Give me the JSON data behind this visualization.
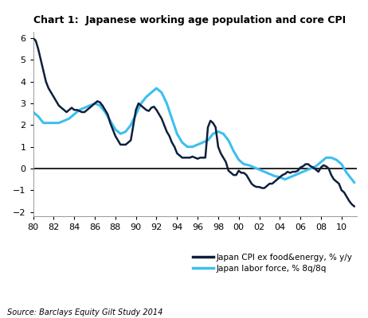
{
  "title": "Chart 1:  Japanese working age population and core CPI",
  "source": "Source: Barclays Equity Gilt Study 2014",
  "xlim": [
    1980,
    2011.5
  ],
  "ylim": [
    -2.2,
    6.3
  ],
  "yticks": [
    -2,
    -1,
    0,
    1,
    2,
    3,
    4,
    5,
    6
  ],
  "xtick_positions": [
    1980,
    1982,
    1984,
    1986,
    1988,
    1990,
    1992,
    1994,
    1996,
    1998,
    2000,
    2002,
    2004,
    2006,
    2008,
    2010
  ],
  "xtick_labels": [
    "80",
    "82",
    "84",
    "86",
    "88",
    "90",
    "92",
    "94",
    "96",
    "98",
    "00",
    "02",
    "04",
    "06",
    "08",
    "10"
  ],
  "cpi_color": "#0d1f3c",
  "labor_color": "#3dbfef",
  "legend_cpi": "Japan CPI ex food&energy, % y/y",
  "legend_labor": "Japan labor force, % 8q/8q",
  "cpi_x": [
    1980.0,
    1980.25,
    1980.5,
    1980.75,
    1981.0,
    1981.25,
    1981.5,
    1981.75,
    1982.0,
    1982.25,
    1982.5,
    1982.75,
    1983.0,
    1983.25,
    1983.5,
    1983.75,
    1984.0,
    1984.25,
    1984.5,
    1984.75,
    1985.0,
    1985.25,
    1985.5,
    1985.75,
    1986.0,
    1986.25,
    1986.5,
    1986.75,
    1987.0,
    1987.25,
    1987.5,
    1987.75,
    1988.0,
    1988.25,
    1988.5,
    1988.75,
    1989.0,
    1989.25,
    1989.5,
    1989.75,
    1990.0,
    1990.25,
    1990.5,
    1990.75,
    1991.0,
    1991.25,
    1991.5,
    1991.75,
    1992.0,
    1992.25,
    1992.5,
    1992.75,
    1993.0,
    1993.25,
    1993.5,
    1993.75,
    1994.0,
    1994.25,
    1994.5,
    1994.75,
    1995.0,
    1995.25,
    1995.5,
    1995.75,
    1996.0,
    1996.25,
    1996.5,
    1996.75,
    1997.0,
    1997.25,
    1997.5,
    1997.75,
    1998.0,
    1998.25,
    1998.5,
    1998.75,
    1999.0,
    1999.25,
    1999.5,
    1999.75,
    2000.0,
    2000.25,
    2000.5,
    2000.75,
    2001.0,
    2001.25,
    2001.5,
    2001.75,
    2002.0,
    2002.25,
    2002.5,
    2002.75,
    2003.0,
    2003.25,
    2003.5,
    2003.75,
    2004.0,
    2004.25,
    2004.5,
    2004.75,
    2005.0,
    2005.25,
    2005.5,
    2005.75,
    2006.0,
    2006.25,
    2006.5,
    2006.75,
    2007.0,
    2007.25,
    2007.5,
    2007.75,
    2008.0,
    2008.25,
    2008.5,
    2008.75,
    2009.0,
    2009.25,
    2009.5,
    2009.75,
    2010.0,
    2010.25,
    2010.5,
    2010.75,
    2011.0,
    2011.25
  ],
  "cpi_y": [
    6.0,
    5.9,
    5.5,
    5.0,
    4.5,
    4.0,
    3.7,
    3.5,
    3.3,
    3.1,
    2.9,
    2.8,
    2.7,
    2.6,
    2.7,
    2.8,
    2.7,
    2.7,
    2.65,
    2.6,
    2.6,
    2.7,
    2.8,
    2.9,
    3.0,
    3.1,
    3.05,
    2.9,
    2.7,
    2.5,
    2.1,
    1.8,
    1.5,
    1.3,
    1.1,
    1.1,
    1.1,
    1.2,
    1.3,
    2.0,
    2.7,
    3.0,
    2.9,
    2.8,
    2.7,
    2.65,
    2.8,
    2.85,
    2.7,
    2.5,
    2.3,
    2.0,
    1.7,
    1.5,
    1.2,
    1.0,
    0.7,
    0.6,
    0.5,
    0.5,
    0.5,
    0.5,
    0.55,
    0.5,
    0.45,
    0.5,
    0.5,
    0.5,
    1.9,
    2.2,
    2.1,
    1.9,
    1.0,
    0.7,
    0.5,
    0.3,
    -0.1,
    -0.2,
    -0.3,
    -0.3,
    -0.1,
    -0.2,
    -0.2,
    -0.3,
    -0.5,
    -0.7,
    -0.8,
    -0.85,
    -0.85,
    -0.9,
    -0.9,
    -0.8,
    -0.7,
    -0.7,
    -0.6,
    -0.5,
    -0.4,
    -0.3,
    -0.25,
    -0.15,
    -0.2,
    -0.15,
    -0.15,
    -0.1,
    0.05,
    0.1,
    0.2,
    0.2,
    0.1,
    0.05,
    -0.05,
    -0.15,
    0.05,
    0.15,
    0.1,
    0.0,
    -0.3,
    -0.5,
    -0.6,
    -0.7,
    -1.0,
    -1.1,
    -1.3,
    -1.5,
    -1.65,
    -1.75
  ],
  "labor_x": [
    1980.0,
    1980.5,
    1981.0,
    1981.5,
    1982.0,
    1982.5,
    1983.0,
    1983.5,
    1984.0,
    1984.5,
    1985.0,
    1985.5,
    1986.0,
    1986.5,
    1987.0,
    1987.5,
    1988.0,
    1988.5,
    1989.0,
    1989.5,
    1990.0,
    1990.5,
    1991.0,
    1991.5,
    1992.0,
    1992.5,
    1993.0,
    1993.5,
    1994.0,
    1994.5,
    1995.0,
    1995.5,
    1996.0,
    1996.5,
    1997.0,
    1997.5,
    1998.0,
    1998.5,
    1999.0,
    1999.5,
    2000.0,
    2000.5,
    2001.0,
    2001.5,
    2002.0,
    2002.5,
    2003.0,
    2003.5,
    2004.0,
    2004.5,
    2005.0,
    2005.5,
    2006.0,
    2006.5,
    2007.0,
    2007.5,
    2008.0,
    2008.5,
    2009.0,
    2009.5,
    2010.0,
    2010.5,
    2011.0,
    2011.25
  ],
  "labor_y": [
    2.6,
    2.4,
    2.1,
    2.1,
    2.1,
    2.1,
    2.2,
    2.3,
    2.5,
    2.7,
    2.8,
    2.9,
    3.0,
    2.9,
    2.6,
    2.2,
    1.8,
    1.6,
    1.7,
    2.0,
    2.5,
    3.0,
    3.3,
    3.5,
    3.7,
    3.5,
    3.0,
    2.3,
    1.6,
    1.2,
    1.0,
    1.0,
    1.1,
    1.2,
    1.3,
    1.6,
    1.7,
    1.6,
    1.3,
    0.8,
    0.4,
    0.2,
    0.15,
    0.05,
    -0.05,
    -0.15,
    -0.25,
    -0.35,
    -0.4,
    -0.5,
    -0.4,
    -0.3,
    -0.2,
    -0.1,
    0.0,
    0.1,
    0.3,
    0.5,
    0.5,
    0.4,
    0.2,
    -0.2,
    -0.5,
    -0.65
  ]
}
